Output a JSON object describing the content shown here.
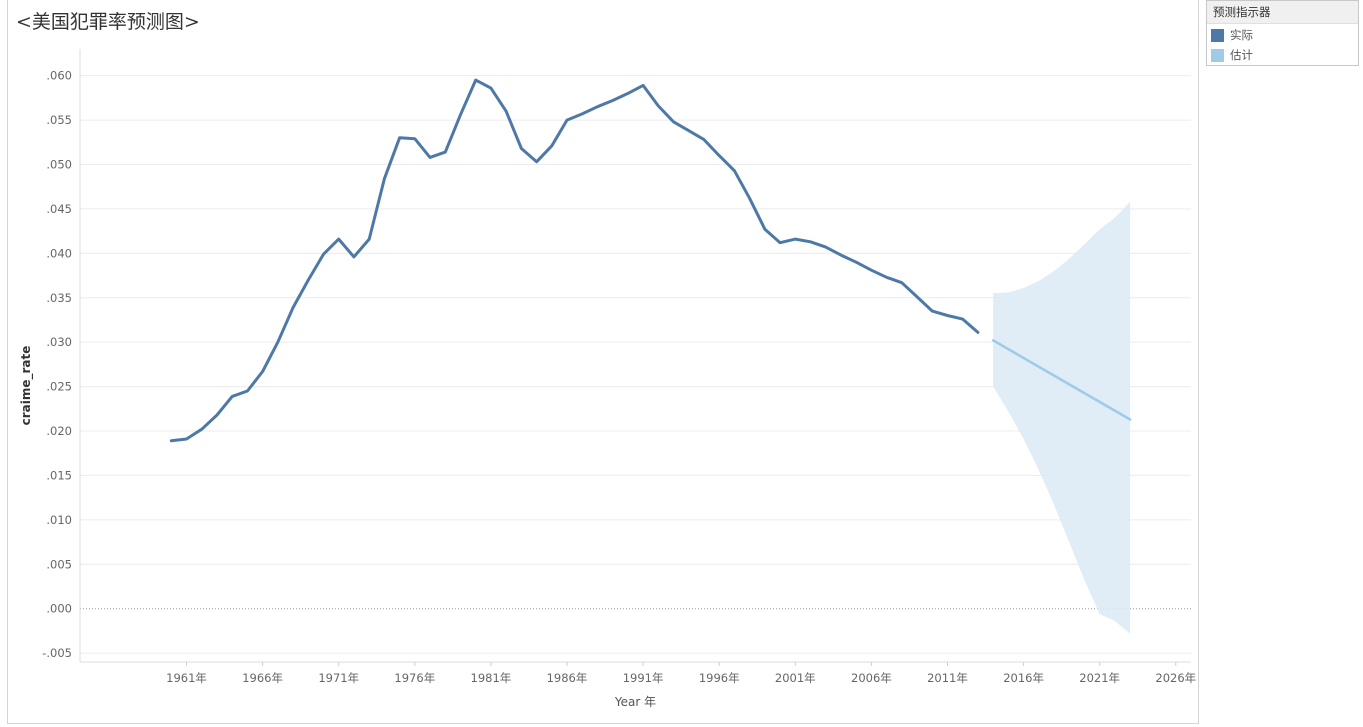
{
  "title": "<美国犯罪率预测图>",
  "legend": {
    "title": "预测指示器",
    "items": [
      {
        "label": "实际",
        "color": "#4e79a7"
      },
      {
        "label": "估计",
        "color": "#a0cbe8"
      }
    ]
  },
  "chart_data": {
    "type": "line",
    "xlabel": "Year 年",
    "ylabel": "craime_rate",
    "xlim": [
      1954,
      2027
    ],
    "ylim": [
      -0.006,
      0.063
    ],
    "x_ticks": [
      1961,
      1966,
      1971,
      1976,
      1981,
      1986,
      1991,
      1996,
      2001,
      2006,
      2011,
      2016,
      2021,
      2026
    ],
    "x_tick_labels": [
      "1961年",
      "1966年",
      "1971年",
      "1976年",
      "1981年",
      "1986年",
      "1991年",
      "1996年",
      "2001年",
      "2006年",
      "2011年",
      "2016年",
      "2021年",
      "2026年"
    ],
    "y_ticks": [
      -0.005,
      0.0,
      0.005,
      0.01,
      0.015,
      0.02,
      0.025,
      0.03,
      0.035,
      0.04,
      0.045,
      0.05,
      0.055,
      0.06
    ],
    "y_tick_labels": [
      "-.005",
      ".000",
      ".005",
      ".010",
      ".015",
      ".020",
      ".025",
      ".030",
      ".035",
      ".040",
      ".045",
      ".050",
      ".055",
      ".060"
    ],
    "grid": "horizontal",
    "legend_position": "right",
    "series": [
      {
        "name": "实际",
        "color": "#4e79a7",
        "x": [
          1960,
          1961,
          1962,
          1963,
          1964,
          1965,
          1966,
          1967,
          1968,
          1969,
          1970,
          1971,
          1972,
          1973,
          1974,
          1975,
          1976,
          1977,
          1978,
          1979,
          1980,
          1981,
          1982,
          1983,
          1984,
          1985,
          1986,
          1987,
          1988,
          1989,
          1990,
          1991,
          1992,
          1993,
          1994,
          1995,
          1996,
          1997,
          1998,
          1999,
          2000,
          2001,
          2002,
          2003,
          2004,
          2005,
          2006,
          2007,
          2008,
          2009,
          2010,
          2011,
          2012,
          2013
        ],
        "values": [
          0.0189,
          0.0191,
          0.0202,
          0.0218,
          0.0239,
          0.0245,
          0.0267,
          0.03,
          0.0339,
          0.037,
          0.0399,
          0.0416,
          0.0396,
          0.0416,
          0.0484,
          0.053,
          0.0529,
          0.0508,
          0.0514,
          0.0556,
          0.0595,
          0.0586,
          0.056,
          0.0518,
          0.0503,
          0.0521,
          0.055,
          0.0557,
          0.0565,
          0.0572,
          0.058,
          0.0589,
          0.0566,
          0.0548,
          0.0538,
          0.0528,
          0.051,
          0.0493,
          0.0462,
          0.0427,
          0.0412,
          0.0416,
          0.0413,
          0.0407,
          0.0398,
          0.039,
          0.0381,
          0.0373,
          0.0367,
          0.0351,
          0.0335,
          0.033,
          0.0326,
          0.0311
        ]
      },
      {
        "name": "估计",
        "color": "#a0cbe8",
        "x": [
          2014,
          2023
        ],
        "values": [
          0.0302,
          0.0213
        ],
        "band": {
          "x": [
            2014,
            2015,
            2016,
            2017,
            2018,
            2019,
            2020,
            2021,
            2022,
            2023
          ],
          "upper": [
            0.0355,
            0.0356,
            0.0361,
            0.0369,
            0.038,
            0.0394,
            0.041,
            0.0427,
            0.044,
            0.0458
          ],
          "lower": [
            0.025,
            0.0222,
            0.0191,
            0.0156,
            0.0117,
            0.0075,
            0.0032,
            -0.0006,
            -0.0014,
            -0.0028
          ]
        }
      }
    ]
  }
}
